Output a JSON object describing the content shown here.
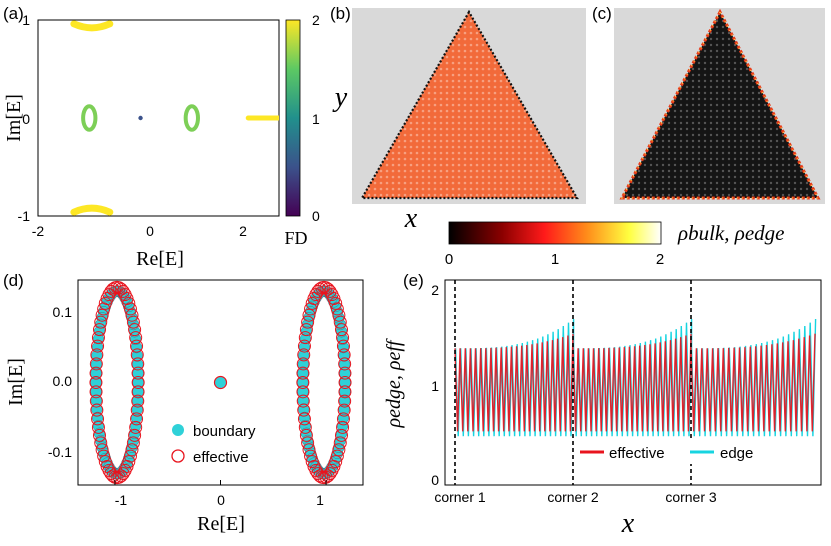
{
  "chart_data": [
    {
      "panel": "(a)",
      "type": "scatter",
      "xlabel": "Re[E]",
      "ylabel": "Im[E]",
      "xlim": [
        -2,
        2.7
      ],
      "ylim": [
        -1,
        1
      ],
      "xticks": [
        "-2",
        "0",
        "2"
      ],
      "yticks": [
        "-1",
        "0",
        "1"
      ],
      "colorbar": {
        "label": "FD",
        "range": [
          0,
          2
        ],
        "ticks": [
          "0",
          "1",
          "2"
        ]
      },
      "features": [
        {
          "shape": "arc",
          "x": [
            -1.3,
            -0.6
          ],
          "y": 0.92,
          "fd": 2.0
        },
        {
          "shape": "arc",
          "x": [
            -1.3,
            -0.6
          ],
          "y": -0.92,
          "fd": 2.0
        },
        {
          "shape": "ring",
          "center": [
            -1.0,
            0.0
          ],
          "radius": 0.2,
          "fd": 1.6
        },
        {
          "shape": "ring",
          "center": [
            1.0,
            0.0
          ],
          "radius": 0.2,
          "fd": 1.6
        },
        {
          "shape": "point",
          "center": [
            0.0,
            0.0
          ],
          "fd": 0.5
        },
        {
          "shape": "segment",
          "x": [
            2.1,
            2.7
          ],
          "y": 0.0,
          "fd": 2.0
        }
      ]
    },
    {
      "panel": "(b)",
      "type": "heatmap",
      "xlabel": "x",
      "ylabel": "y",
      "quantity": "rho_bulk"
    },
    {
      "panel": "(c)",
      "type": "heatmap",
      "quantity": "rho_edge"
    },
    {
      "panel": "shared-colorbar",
      "type": "heatmap",
      "label": "ρbulk, ρedge",
      "range": [
        0,
        2
      ],
      "ticks": [
        "0",
        "1",
        "2"
      ]
    },
    {
      "panel": "(d)",
      "type": "scatter",
      "xlabel": "Re[E]",
      "ylabel": "Im[E]",
      "xlim": [
        -1.35,
        1.35
      ],
      "ylim": [
        -0.14,
        0.14
      ],
      "xticks": [
        "-1",
        "0",
        "1"
      ],
      "yticks": [
        "-0.1",
        "0.0",
        "0.1"
      ],
      "legend": "center",
      "series": [
        {
          "name": "boundary",
          "marker": "filled-circle",
          "ellipses": [
            [
              -0.98,
              0.0,
              0.2,
              0.125
            ],
            [
              0.98,
              0.0,
              0.2,
              0.125
            ]
          ],
          "center_point": [
            0,
            0
          ]
        },
        {
          "name": "effective",
          "marker": "open-circle",
          "ellipses": [
            [
              -0.98,
              0.0,
              0.2,
              0.13
            ],
            [
              0.98,
              0.0,
              0.2,
              0.13
            ]
          ],
          "center_point": [
            0,
            0
          ]
        }
      ]
    },
    {
      "panel": "(e)",
      "type": "line",
      "xlabel": "x",
      "ylabel": "ρedge, ρeff",
      "ylim": [
        0,
        2.1
      ],
      "yticks": [
        "0",
        "1",
        "2"
      ],
      "corners": [
        "corner 1",
        "corner 2",
        "corner 3"
      ],
      "legend": "bottom-right",
      "series": [
        {
          "name": "effective",
          "low": 0.55,
          "high_start": 1.4,
          "high_end": 1.55
        },
        {
          "name": "edge",
          "low": 0.5,
          "high_start": 1.4,
          "high_end": 1.7
        }
      ]
    }
  ],
  "labels": {
    "a": "(a)",
    "b": "(b)",
    "c": "(c)",
    "d": "(d)",
    "e": "(e)",
    "a_x": "Re[E]",
    "a_y": "Im[E]",
    "fd": "FD",
    "b_x": "x",
    "b_y": "y",
    "cb_label": "ρbulk, ρedge",
    "d_x": "Re[E]",
    "d_y": "Im[E]",
    "legend_boundary": "boundary",
    "legend_effective": "effective",
    "e_y": "ρedge, ρeff",
    "e_x": "x",
    "e_leg_effective": "effective",
    "e_leg_edge": "edge",
    "corner1": "corner 1",
    "corner2": "corner 2",
    "corner3": "corner 3"
  },
  "ticks": {
    "a_x": [
      "-2",
      "0",
      "2"
    ],
    "a_y": [
      "1",
      "0",
      "-1"
    ],
    "fd": [
      "2",
      "1",
      "0"
    ],
    "cb": [
      "0",
      "1",
      "2"
    ],
    "d_x": [
      "-1",
      "0",
      "1"
    ],
    "d_y": [
      "0.1",
      "0.0",
      "-0.1"
    ],
    "e_y": [
      "2",
      "1",
      "0"
    ]
  },
  "colors": {
    "viridis": [
      "#440154",
      "#3b528b",
      "#21908c",
      "#5dc963",
      "#fde725"
    ],
    "hot": [
      "#000000",
      "#8b0000",
      "#ff1a1a",
      "#ff8c1a",
      "#ffff40",
      "#ffffff"
    ],
    "bulk_fill": "#f26a3a",
    "effective": "#e8141e",
    "edge": "#17d4e0",
    "boundary_fill": "#2fd1d8",
    "bg_panel": "#d9d9d9"
  }
}
